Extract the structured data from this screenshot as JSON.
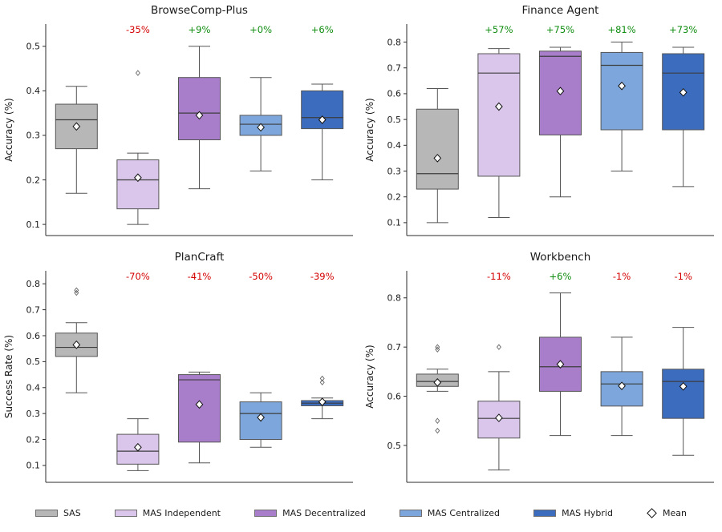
{
  "figure": {
    "background": "#ffffff"
  },
  "legend": {
    "items": [
      {
        "label": "SAS",
        "color": "#b7b7b7"
      },
      {
        "label": "MAS Independent",
        "color": "#d9c6ea"
      },
      {
        "label": "MAS Decentralized",
        "color": "#a87dca"
      },
      {
        "label": "MAS Centralized",
        "color": "#7da7dc"
      },
      {
        "label": "MAS Hybrid",
        "color": "#3c6cbe"
      }
    ],
    "mean_label": "Mean"
  },
  "style": {
    "edge_color": "#555555",
    "median_color": "#3d3d3d",
    "annotation_red": "#d40000",
    "annotation_green": "#0e8c0e",
    "mean_marker": "white diamond, black edge",
    "outlier_marker": "small gray diamond"
  },
  "chart_data": [
    {
      "type": "box",
      "title": "BrowseComp-Plus",
      "ylabel": "Accuracy (%)",
      "ylim": [
        0.075,
        0.55
      ],
      "yticks": [
        0.1,
        0.2,
        0.3,
        0.4,
        0.5
      ],
      "grid": false,
      "legend_position": "figure-bottom",
      "series": [
        {
          "name": "SAS",
          "whislo": 0.17,
          "q1": 0.27,
          "med": 0.335,
          "q3": 0.37,
          "whishi": 0.41,
          "mean": 0.32,
          "outliers": []
        },
        {
          "name": "MAS Independent",
          "whislo": 0.1,
          "q1": 0.135,
          "med": 0.2,
          "q3": 0.245,
          "whishi": 0.26,
          "mean": 0.205,
          "outliers": [
            0.44
          ]
        },
        {
          "name": "MAS Decentralized",
          "whislo": 0.18,
          "q1": 0.29,
          "med": 0.35,
          "q3": 0.43,
          "whishi": 0.5,
          "mean": 0.345,
          "outliers": []
        },
        {
          "name": "MAS Centralized",
          "whislo": 0.22,
          "q1": 0.3,
          "med": 0.325,
          "q3": 0.345,
          "whishi": 0.43,
          "mean": 0.318,
          "outliers": []
        },
        {
          "name": "MAS Hybrid",
          "whislo": 0.2,
          "q1": 0.315,
          "med": 0.34,
          "q3": 0.4,
          "whishi": 0.415,
          "mean": 0.335,
          "outliers": []
        }
      ],
      "annotations": [
        null,
        {
          "text": "-35%",
          "color": "#d40000"
        },
        {
          "text": "+9%",
          "color": "#0e8c0e"
        },
        {
          "text": "+0%",
          "color": "#0e8c0e"
        },
        {
          "text": "+6%",
          "color": "#0e8c0e"
        }
      ]
    },
    {
      "type": "box",
      "title": "Finance Agent",
      "ylabel": "Accuracy (%)",
      "ylim": [
        0.05,
        0.87
      ],
      "yticks": [
        0.1,
        0.2,
        0.3,
        0.4,
        0.5,
        0.6,
        0.7,
        0.8
      ],
      "grid": false,
      "legend_position": "figure-bottom",
      "series": [
        {
          "name": "SAS",
          "whislo": 0.1,
          "q1": 0.23,
          "med": 0.29,
          "q3": 0.54,
          "whishi": 0.62,
          "mean": 0.35,
          "outliers": []
        },
        {
          "name": "MAS Independent",
          "whislo": 0.12,
          "q1": 0.28,
          "med": 0.68,
          "q3": 0.755,
          "whishi": 0.775,
          "mean": 0.55,
          "outliers": []
        },
        {
          "name": "MAS Decentralized",
          "whislo": 0.2,
          "q1": 0.44,
          "med": 0.745,
          "q3": 0.765,
          "whishi": 0.78,
          "mean": 0.61,
          "outliers": []
        },
        {
          "name": "MAS Centralized",
          "whislo": 0.3,
          "q1": 0.46,
          "med": 0.71,
          "q3": 0.76,
          "whishi": 0.8,
          "mean": 0.63,
          "outliers": []
        },
        {
          "name": "MAS Hybrid",
          "whislo": 0.24,
          "q1": 0.46,
          "med": 0.68,
          "q3": 0.755,
          "whishi": 0.78,
          "mean": 0.605,
          "outliers": []
        }
      ],
      "annotations": [
        null,
        {
          "text": "+57%",
          "color": "#0e8c0e"
        },
        {
          "text": "+75%",
          "color": "#0e8c0e"
        },
        {
          "text": "+81%",
          "color": "#0e8c0e"
        },
        {
          "text": "+73%",
          "color": "#0e8c0e"
        }
      ]
    },
    {
      "type": "box",
      "title": "PlanCraft",
      "ylabel": "Success Rate (%)",
      "ylim": [
        0.035,
        0.85
      ],
      "yticks": [
        0.1,
        0.2,
        0.3,
        0.4,
        0.5,
        0.6,
        0.7,
        0.8
      ],
      "grid": false,
      "legend_position": "figure-bottom",
      "series": [
        {
          "name": "SAS",
          "whislo": 0.38,
          "q1": 0.52,
          "med": 0.555,
          "q3": 0.61,
          "whishi": 0.65,
          "mean": 0.565,
          "outliers": [
            0.765,
            0.775
          ]
        },
        {
          "name": "MAS Independent",
          "whislo": 0.08,
          "q1": 0.105,
          "med": 0.155,
          "q3": 0.22,
          "whishi": 0.28,
          "mean": 0.17,
          "outliers": []
        },
        {
          "name": "MAS Decentralized",
          "whislo": 0.11,
          "q1": 0.19,
          "med": 0.43,
          "q3": 0.45,
          "whishi": 0.46,
          "mean": 0.335,
          "outliers": []
        },
        {
          "name": "MAS Centralized",
          "whislo": 0.17,
          "q1": 0.2,
          "med": 0.3,
          "q3": 0.345,
          "whishi": 0.38,
          "mean": 0.285,
          "outliers": []
        },
        {
          "name": "MAS Hybrid",
          "whislo": 0.28,
          "q1": 0.33,
          "med": 0.34,
          "q3": 0.35,
          "whishi": 0.36,
          "mean": 0.345,
          "outliers": [
            0.42,
            0.435
          ]
        }
      ],
      "annotations": [
        null,
        {
          "text": "-70%",
          "color": "#d40000"
        },
        {
          "text": "-41%",
          "color": "#d40000"
        },
        {
          "text": "-50%",
          "color": "#d40000"
        },
        {
          "text": "-39%",
          "color": "#d40000"
        }
      ]
    },
    {
      "type": "box",
      "title": "Workbench",
      "ylabel": "Accuracy (%)",
      "ylim": [
        0.425,
        0.855
      ],
      "yticks": [
        0.5,
        0.6,
        0.7,
        0.8
      ],
      "grid": false,
      "legend_position": "figure-bottom",
      "series": [
        {
          "name": "SAS",
          "whislo": 0.61,
          "q1": 0.62,
          "med": 0.63,
          "q3": 0.645,
          "whishi": 0.655,
          "mean": 0.628,
          "outliers": [
            0.7,
            0.695,
            0.55,
            0.53
          ]
        },
        {
          "name": "MAS Independent",
          "whislo": 0.45,
          "q1": 0.515,
          "med": 0.555,
          "q3": 0.59,
          "whishi": 0.65,
          "mean": 0.556,
          "outliers": [
            0.7
          ]
        },
        {
          "name": "MAS Decentralized",
          "whislo": 0.52,
          "q1": 0.61,
          "med": 0.66,
          "q3": 0.72,
          "whishi": 0.81,
          "mean": 0.665,
          "outliers": []
        },
        {
          "name": "MAS Centralized",
          "whislo": 0.52,
          "q1": 0.58,
          "med": 0.625,
          "q3": 0.65,
          "whishi": 0.72,
          "mean": 0.621,
          "outliers": []
        },
        {
          "name": "MAS Hybrid",
          "whislo": 0.48,
          "q1": 0.555,
          "med": 0.63,
          "q3": 0.655,
          "whishi": 0.74,
          "mean": 0.62,
          "outliers": []
        }
      ],
      "annotations": [
        null,
        {
          "text": "-11%",
          "color": "#d40000"
        },
        {
          "text": "+6%",
          "color": "#0e8c0e"
        },
        {
          "text": "-1%",
          "color": "#d40000"
        },
        {
          "text": "-1%",
          "color": "#d40000"
        }
      ]
    }
  ]
}
